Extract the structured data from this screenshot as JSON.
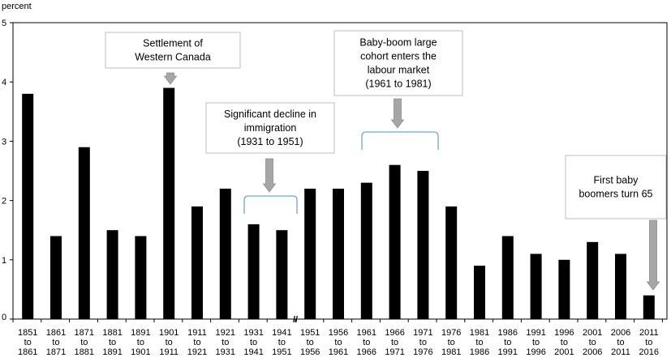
{
  "chart_data": {
    "type": "bar",
    "ylabel": "percent",
    "ylim": [
      0,
      5
    ],
    "yticks": [
      0,
      1,
      2,
      3,
      4,
      5
    ],
    "grid": false,
    "bar_color": "#000000",
    "categories": [
      [
        "1851",
        "to",
        "1861"
      ],
      [
        "1861",
        "to",
        "1871"
      ],
      [
        "1871",
        "to",
        "1881"
      ],
      [
        "1881",
        "to",
        "1891"
      ],
      [
        "1891",
        "to",
        "1901"
      ],
      [
        "1901",
        "to",
        "1911"
      ],
      [
        "1911",
        "to",
        "1921"
      ],
      [
        "1921",
        "to",
        "1931"
      ],
      [
        "1931",
        "to",
        "1941"
      ],
      [
        "1941",
        "to",
        "1951"
      ],
      [
        "1951",
        "to",
        "1956"
      ],
      [
        "1956",
        "to",
        "1961"
      ],
      [
        "1961",
        "to",
        "1966"
      ],
      [
        "1966",
        "to",
        "1971"
      ],
      [
        "1971",
        "to",
        "1976"
      ],
      [
        "1976",
        "to",
        "1981"
      ],
      [
        "1981",
        "to",
        "1986"
      ],
      [
        "1986",
        "to",
        "1991"
      ],
      [
        "1991",
        "to",
        "1996"
      ],
      [
        "1996",
        "to",
        "2001"
      ],
      [
        "2001",
        "to",
        "2006"
      ],
      [
        "2006",
        "to",
        "2011"
      ],
      [
        "2011",
        "to",
        "2016"
      ]
    ],
    "values": [
      3.8,
      1.4,
      2.9,
      1.5,
      1.4,
      3.9,
      1.9,
      2.2,
      1.6,
      1.5,
      2.2,
      2.2,
      2.3,
      2.6,
      2.5,
      1.9,
      0.9,
      1.4,
      1.1,
      1.0,
      1.3,
      1.1,
      0.4
    ],
    "axis_break_label": "//",
    "annotations": [
      {
        "lines": [
          "Settlement of",
          "Western Canada"
        ]
      },
      {
        "lines": [
          "Significant decline in",
          "immigration",
          "(1931 to 1951)"
        ]
      },
      {
        "lines": [
          "Baby-boom large",
          "cohort enters the",
          "labour market",
          "(1961 to 1981)"
        ]
      },
      {
        "lines": [
          "First baby",
          "boomers turn 65"
        ]
      }
    ]
  }
}
